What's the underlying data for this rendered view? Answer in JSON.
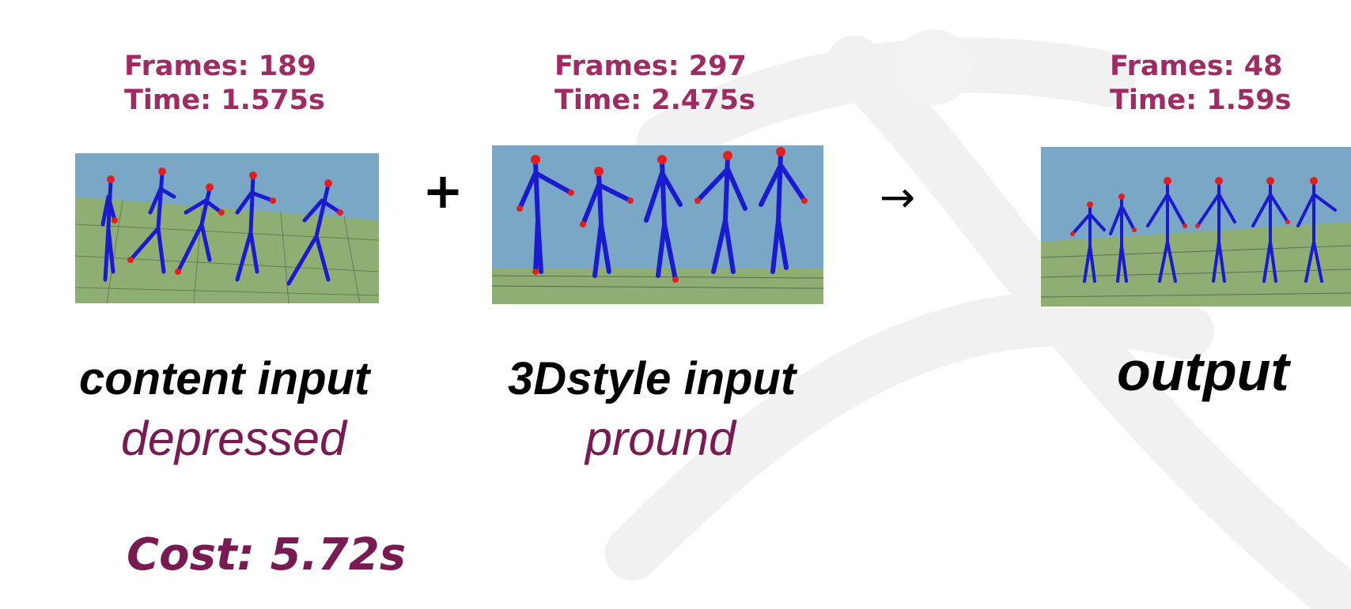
{
  "content_stats": {
    "frames": "Frames: 189",
    "time": "Time: 1.575s"
  },
  "style_stats": {
    "frames": "Frames: 297",
    "time": "Time: 2.475s"
  },
  "output_stats": {
    "frames": "Frames: 48",
    "time": "Time: 1.59s"
  },
  "operators": {
    "plus": "+",
    "arrow": "→"
  },
  "labels": {
    "content_title": "content input",
    "content_emotion": "depressed",
    "style_title": "3Dstyle input",
    "style_emotion": "pround",
    "output_title": "output"
  },
  "cost": "Cost:  5.72s",
  "colors": {
    "accent": "#9e2c62",
    "emotion": "#7a1a52",
    "sky": "#7aa7c6",
    "ground": "#8fae74",
    "skeleton": "#1a1ad0",
    "joint_marker": "#e02020"
  },
  "icons": {
    "skeleton": "stick-figure-skeleton-icon"
  }
}
